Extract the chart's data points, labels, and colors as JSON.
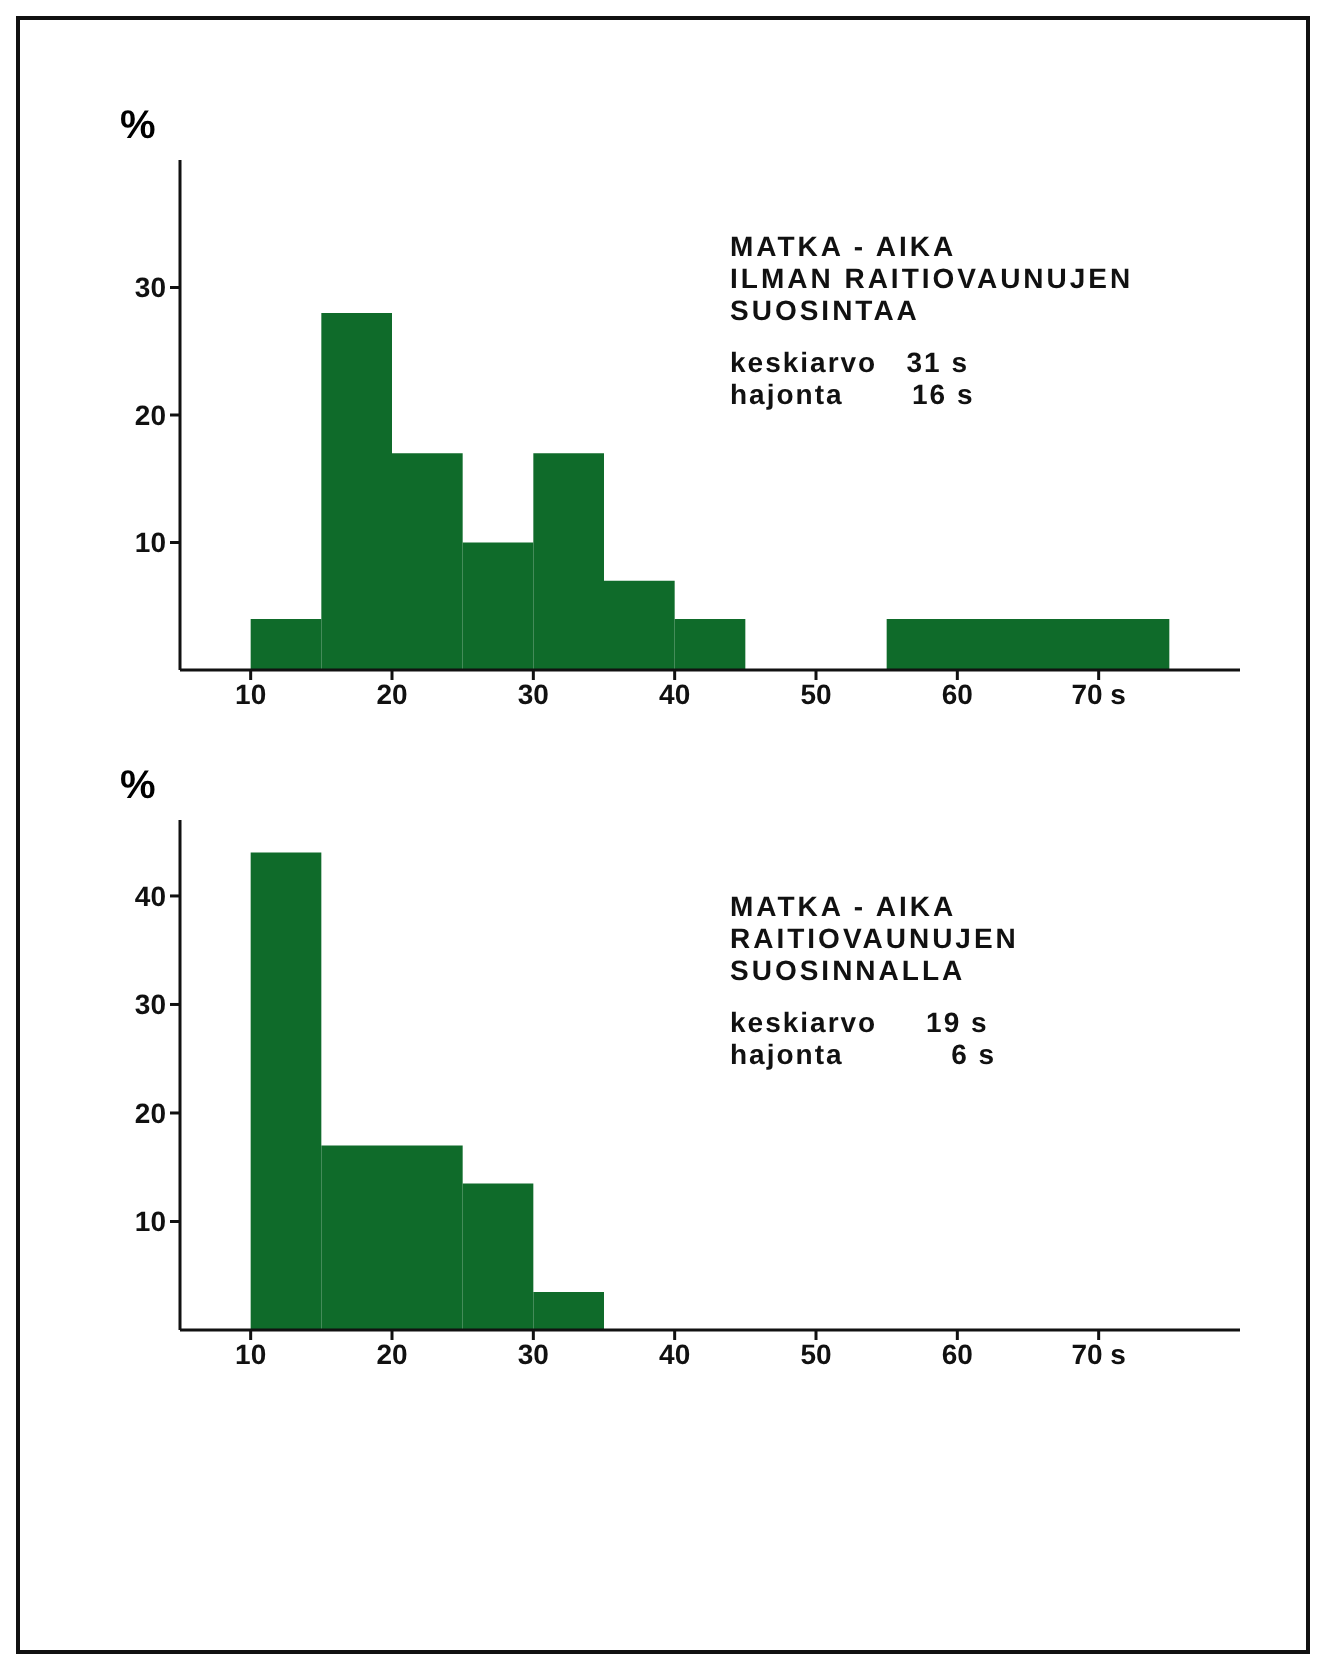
{
  "chart_data": [
    {
      "type": "histogram",
      "ylabel": "%",
      "color": "#0f6b2a",
      "bins": [
        10,
        15,
        20,
        25,
        30,
        35,
        40,
        45,
        55,
        75
      ],
      "values": [
        4,
        28,
        17,
        10,
        17,
        7,
        4,
        0,
        4
      ],
      "xlim": [
        5,
        80
      ],
      "xticks": [
        10,
        20,
        30,
        40,
        50,
        60,
        {
          "value": 70,
          "label": "70 s"
        }
      ],
      "ylim": [
        0,
        40
      ],
      "yticks": [
        10,
        20,
        30
      ],
      "annotations": [
        "MATKA - AIKA",
        "ILMAN RAITIOVAUNUJEN",
        "SUOSINTAA",
        "keskiarvo   31 s",
        "hajonta       16 s"
      ]
    },
    {
      "type": "histogram",
      "ylabel": "%",
      "color": "#0f6b2a",
      "bins": [
        10,
        15,
        20,
        25,
        30,
        35
      ],
      "values": [
        44,
        17,
        17,
        13.5,
        3.5
      ],
      "xlim": [
        5,
        80
      ],
      "xticks": [
        10,
        20,
        30,
        40,
        50,
        60,
        {
          "value": 70,
          "label": "70 s"
        }
      ],
      "ylim": [
        0,
        47
      ],
      "yticks": [
        10,
        20,
        30,
        40
      ],
      "annotations": [
        "MATKA - AIKA",
        "RAITIOVAUNUJEN",
        "SUOSINNALLA",
        "keskiarvo     19 s",
        "hajonta           6 s"
      ]
    }
  ]
}
